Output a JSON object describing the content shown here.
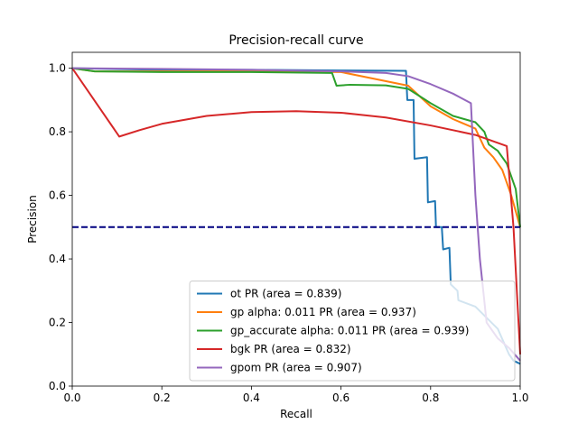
{
  "chart_data": {
    "type": "line",
    "title": "Precision-recall curve",
    "xlabel": "Recall",
    "ylabel": "Precision",
    "xlim": [
      0.0,
      1.0
    ],
    "ylim": [
      0.0,
      1.05
    ],
    "x_ticks": [
      "0.0",
      "0.2",
      "0.4",
      "0.6",
      "0.8",
      "1.0"
    ],
    "y_ticks": [
      "0.0",
      "0.2",
      "0.4",
      "0.6",
      "0.8",
      "1.0"
    ],
    "grid": false,
    "legend_position": "lower-right",
    "baseline": {
      "y": 0.5,
      "color": "#000080",
      "style": "dashed"
    },
    "series": [
      {
        "name": "ot PR (area = 0.839)",
        "color": "#1f77b4",
        "points": [
          [
            0.0,
            1.0
          ],
          [
            0.2,
            0.995
          ],
          [
            0.4,
            0.995
          ],
          [
            0.6,
            0.993
          ],
          [
            0.745,
            0.992
          ],
          [
            0.748,
            0.9
          ],
          [
            0.762,
            0.9
          ],
          [
            0.764,
            0.715
          ],
          [
            0.792,
            0.72
          ],
          [
            0.794,
            0.578
          ],
          [
            0.81,
            0.582
          ],
          [
            0.812,
            0.5
          ],
          [
            0.825,
            0.5
          ],
          [
            0.828,
            0.43
          ],
          [
            0.842,
            0.435
          ],
          [
            0.845,
            0.32
          ],
          [
            0.86,
            0.3
          ],
          [
            0.862,
            0.27
          ],
          [
            0.9,
            0.25
          ],
          [
            0.95,
            0.18
          ],
          [
            0.975,
            0.1
          ],
          [
            0.985,
            0.08
          ],
          [
            1.0,
            0.07
          ]
        ]
      },
      {
        "name": "gp alpha: 0.011 PR (area = 0.937)",
        "color": "#ff7f0e",
        "points": [
          [
            0.0,
            1.0
          ],
          [
            0.05,
            0.99
          ],
          [
            0.2,
            0.99
          ],
          [
            0.4,
            0.99
          ],
          [
            0.6,
            0.988
          ],
          [
            0.75,
            0.945
          ],
          [
            0.8,
            0.88
          ],
          [
            0.85,
            0.84
          ],
          [
            0.9,
            0.81
          ],
          [
            0.92,
            0.75
          ],
          [
            0.94,
            0.72
          ],
          [
            0.96,
            0.68
          ],
          [
            0.98,
            0.6
          ],
          [
            1.0,
            0.5
          ]
        ]
      },
      {
        "name": "gp_accurate alpha: 0.011 PR (area = 0.939)",
        "color": "#2ca02c",
        "points": [
          [
            0.0,
            1.0
          ],
          [
            0.05,
            0.99
          ],
          [
            0.2,
            0.988
          ],
          [
            0.4,
            0.988
          ],
          [
            0.58,
            0.985
          ],
          [
            0.59,
            0.945
          ],
          [
            0.62,
            0.948
          ],
          [
            0.7,
            0.946
          ],
          [
            0.75,
            0.935
          ],
          [
            0.8,
            0.89
          ],
          [
            0.85,
            0.85
          ],
          [
            0.9,
            0.83
          ],
          [
            0.92,
            0.8
          ],
          [
            0.93,
            0.76
          ],
          [
            0.95,
            0.74
          ],
          [
            0.97,
            0.7
          ],
          [
            0.99,
            0.62
          ],
          [
            1.0,
            0.5
          ]
        ]
      },
      {
        "name": "bgk PR (area = 0.832)",
        "color": "#d62728",
        "points": [
          [
            0.0,
            1.0
          ],
          [
            0.105,
            0.785
          ],
          [
            0.15,
            0.805
          ],
          [
            0.2,
            0.825
          ],
          [
            0.3,
            0.85
          ],
          [
            0.4,
            0.862
          ],
          [
            0.5,
            0.865
          ],
          [
            0.6,
            0.86
          ],
          [
            0.7,
            0.845
          ],
          [
            0.8,
            0.82
          ],
          [
            0.9,
            0.79
          ],
          [
            0.97,
            0.755
          ],
          [
            0.985,
            0.5
          ],
          [
            1.0,
            0.1
          ]
        ]
      },
      {
        "name": "gpom PR (area = 0.907)",
        "color": "#9467bd",
        "points": [
          [
            0.0,
            1.0
          ],
          [
            0.2,
            0.998
          ],
          [
            0.4,
            0.995
          ],
          [
            0.6,
            0.99
          ],
          [
            0.7,
            0.985
          ],
          [
            0.75,
            0.975
          ],
          [
            0.8,
            0.95
          ],
          [
            0.85,
            0.92
          ],
          [
            0.89,
            0.89
          ],
          [
            0.9,
            0.6
          ],
          [
            0.91,
            0.4
          ],
          [
            0.925,
            0.2
          ],
          [
            0.95,
            0.15
          ],
          [
            0.975,
            0.12
          ],
          [
            1.0,
            0.08
          ]
        ]
      }
    ]
  }
}
